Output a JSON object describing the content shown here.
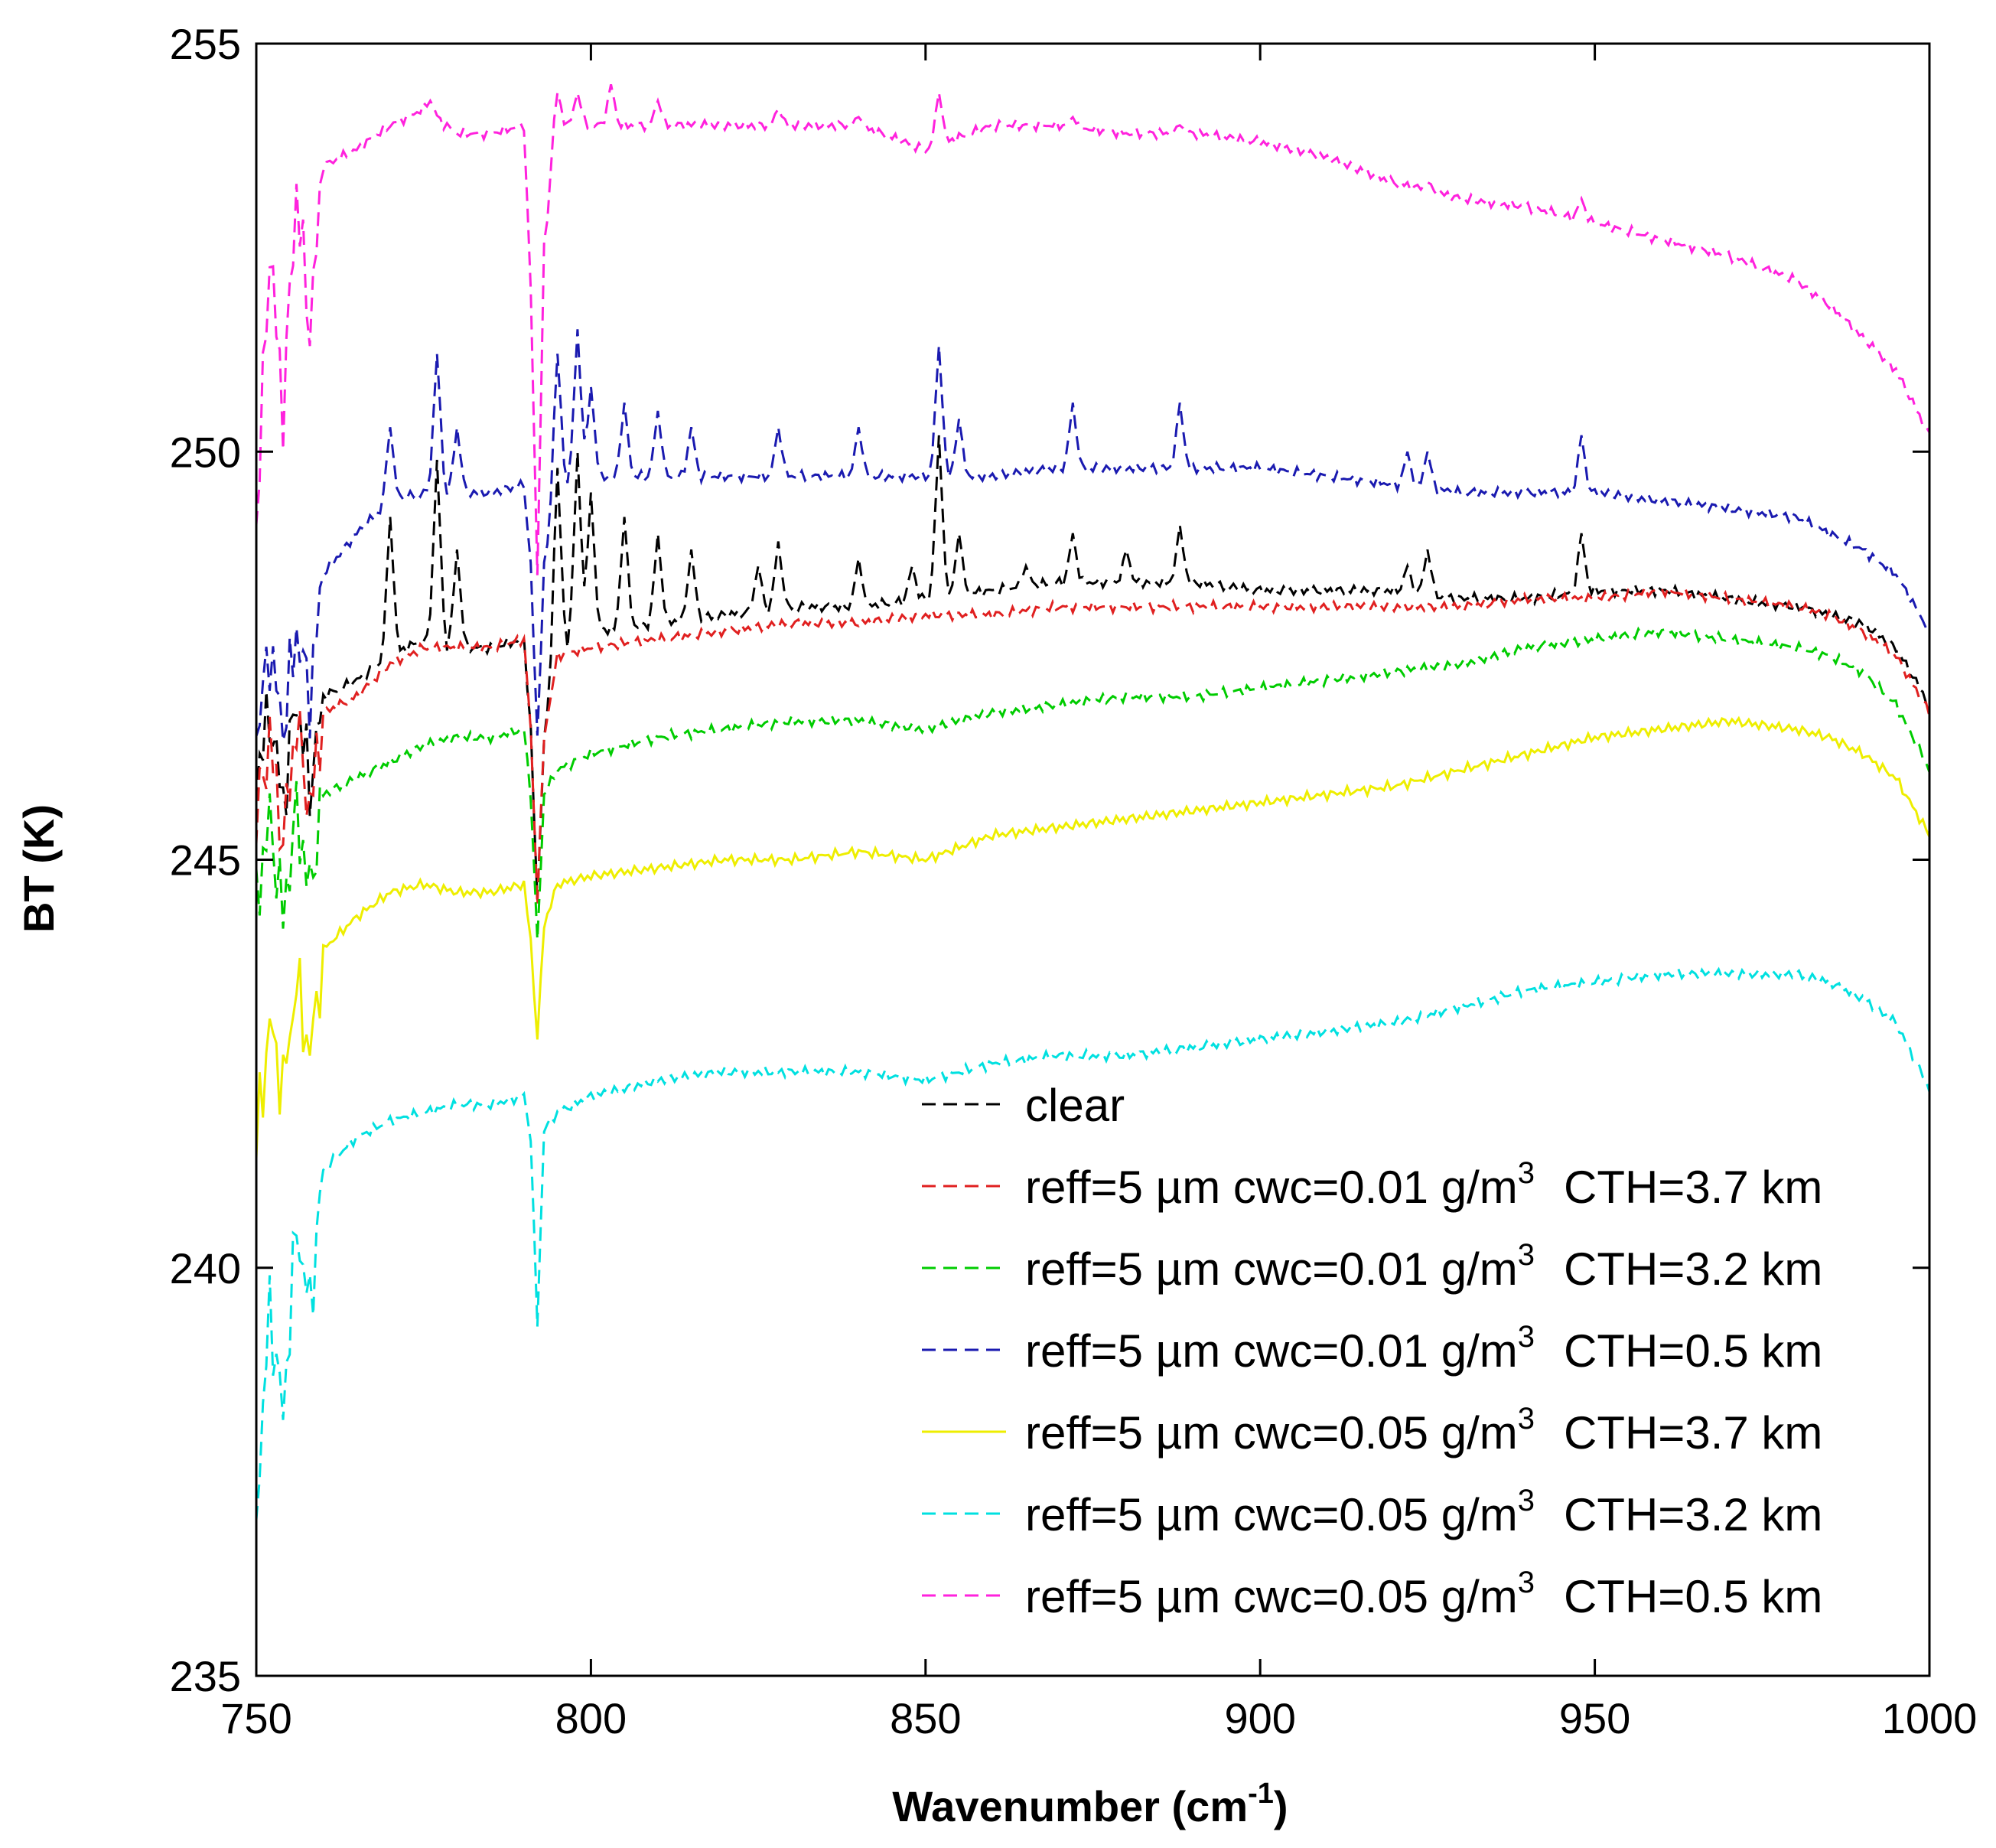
{
  "chart_data": {
    "type": "line",
    "title": "",
    "xlabel": "Wavenumber (cm",
    "xlabel_sup": "-1",
    "xlabel_close": ")",
    "ylabel": "BT (K)",
    "xlim": [
      750,
      1000
    ],
    "ylim": [
      235,
      255
    ],
    "x_ticks": [
      750,
      800,
      850,
      900,
      950,
      1000
    ],
    "y_ticks": [
      235,
      240,
      245,
      250,
      255
    ],
    "grid": false,
    "legend_position": "bottom-right",
    "series": [
      {
        "name": "clear",
        "legend": {
          "main": "clear",
          "sup": "",
          "tail": ""
        },
        "color": "#000000",
        "dash": "18,10",
        "x": [
          750,
          752,
          754,
          756,
          758,
          760,
          765,
          770,
          775,
          780,
          785,
          790,
          791,
          792,
          793,
          795,
          800,
          810,
          820,
          830,
          840,
          850,
          860,
          870,
          880,
          890,
          900,
          910,
          920,
          930,
          940,
          950,
          960,
          970,
          980,
          985,
          990,
          995,
          1000
        ],
        "y": [
          246.0,
          246.8,
          245.7,
          247.0,
          245.9,
          247.0,
          247.2,
          247.5,
          247.7,
          247.6,
          247.6,
          247.7,
          246.6,
          244.5,
          246.5,
          247.6,
          247.8,
          247.9,
          248.0,
          248.1,
          248.1,
          248.2,
          248.3,
          248.4,
          248.4,
          248.4,
          248.3,
          248.3,
          248.3,
          248.2,
          248.2,
          248.3,
          248.3,
          248.2,
          248.1,
          248.0,
          247.9,
          247.6,
          246.9
        ],
        "spikes": [
          [
            770,
            249.2
          ],
          [
            777,
            249.9
          ],
          [
            780,
            248.8
          ],
          [
            795,
            249.8
          ],
          [
            798,
            250.0
          ],
          [
            800,
            249.5
          ],
          [
            805,
            249.2
          ],
          [
            810,
            249.0
          ],
          [
            815,
            248.8
          ],
          [
            825,
            248.6
          ],
          [
            828,
            248.9
          ],
          [
            840,
            248.7
          ],
          [
            848,
            248.6
          ],
          [
            852,
            250.2
          ],
          [
            855,
            249.0
          ],
          [
            865,
            248.6
          ],
          [
            872,
            249.0
          ],
          [
            880,
            248.8
          ],
          [
            888,
            249.1
          ],
          [
            922,
            248.6
          ],
          [
            925,
            248.8
          ],
          [
            948,
            249.0
          ]
        ]
      },
      {
        "name": "reff=5 µm cwc=0.01 g/m3 CTH=3.7 km",
        "legend": {
          "main": "reff=5 µm cwc=0.01 g/m",
          "sup": "3",
          "tail": "CTH=3.7 km"
        },
        "color": "#e02020",
        "dash": "18,10",
        "x": [
          750,
          752,
          754,
          756,
          758,
          760,
          765,
          770,
          775,
          780,
          785,
          790,
          791,
          792,
          793,
          795,
          800,
          810,
          820,
          830,
          840,
          850,
          860,
          870,
          880,
          890,
          900,
          910,
          920,
          930,
          940,
          950,
          960,
          970,
          980,
          985,
          990,
          995,
          1000
        ],
        "y": [
          245.5,
          246.5,
          245.2,
          246.7,
          245.6,
          246.8,
          247.0,
          247.4,
          247.6,
          247.6,
          247.6,
          247.7,
          246.6,
          244.5,
          246.5,
          247.5,
          247.6,
          247.7,
          247.8,
          247.9,
          247.9,
          248.0,
          248.0,
          248.1,
          248.1,
          248.1,
          248.1,
          248.1,
          248.1,
          248.1,
          248.2,
          248.2,
          248.3,
          248.2,
          248.1,
          248.0,
          247.8,
          247.5,
          246.8
        ],
        "spikes": []
      },
      {
        "name": "reff=5 µm cwc=0.01 g/m3 CTH=3.2 km",
        "legend": {
          "main": "reff=5 µm cwc=0.01 g/m",
          "sup": "3",
          "tail": "CTH=3.2 km"
        },
        "color": "#00cc00",
        "dash": "18,10",
        "x": [
          750,
          752,
          754,
          756,
          758,
          760,
          765,
          770,
          775,
          780,
          785,
          790,
          791,
          792,
          793,
          795,
          800,
          810,
          820,
          830,
          840,
          850,
          860,
          870,
          880,
          890,
          900,
          910,
          920,
          930,
          940,
          950,
          960,
          970,
          980,
          985,
          990,
          995,
          1000
        ],
        "y": [
          244.5,
          245.5,
          244.3,
          245.6,
          244.6,
          245.8,
          246.0,
          246.2,
          246.4,
          246.5,
          246.5,
          246.6,
          245.8,
          244.0,
          245.8,
          246.1,
          246.3,
          246.5,
          246.6,
          246.7,
          246.7,
          246.6,
          246.8,
          246.9,
          247.0,
          247.0,
          247.1,
          247.2,
          247.3,
          247.4,
          247.6,
          247.7,
          247.8,
          247.7,
          247.6,
          247.5,
          247.3,
          246.9,
          246.1
        ],
        "spikes": []
      },
      {
        "name": "reff=5 µm cwc=0.01 g/m3 CTH=0.5 km",
        "legend": {
          "main": "reff=5 µm cwc=0.01 g/m",
          "sup": "3",
          "tail": "CTH=0.5 km"
        },
        "color": "#1a1ab0",
        "dash": "18,10",
        "x": [
          750,
          752,
          754,
          756,
          758,
          760,
          765,
          770,
          775,
          780,
          785,
          790,
          791,
          792,
          793,
          795,
          800,
          810,
          820,
          830,
          840,
          850,
          860,
          870,
          880,
          890,
          900,
          910,
          920,
          930,
          940,
          950,
          960,
          970,
          980,
          985,
          990,
          995,
          1000
        ],
        "y": [
          246.5,
          247.6,
          246.6,
          247.8,
          247.0,
          248.5,
          249.0,
          249.4,
          249.5,
          249.5,
          249.5,
          249.6,
          248.6,
          246.5,
          248.6,
          249.6,
          249.7,
          249.7,
          249.7,
          249.7,
          249.7,
          249.7,
          249.7,
          249.8,
          249.8,
          249.8,
          249.8,
          249.7,
          249.6,
          249.5,
          249.5,
          249.5,
          249.4,
          249.3,
          249.2,
          249.0,
          248.8,
          248.5,
          247.8
        ],
        "spikes": [
          [
            770,
            250.3
          ],
          [
            777,
            251.2
          ],
          [
            780,
            250.3
          ],
          [
            795,
            251.2
          ],
          [
            798,
            251.5
          ],
          [
            800,
            250.8
          ],
          [
            805,
            250.6
          ],
          [
            810,
            250.5
          ],
          [
            815,
            250.3
          ],
          [
            828,
            250.3
          ],
          [
            840,
            250.3
          ],
          [
            852,
            251.3
          ],
          [
            855,
            250.4
          ],
          [
            872,
            250.6
          ],
          [
            888,
            250.6
          ],
          [
            922,
            250.0
          ],
          [
            925,
            250.0
          ],
          [
            948,
            250.2
          ]
        ]
      },
      {
        "name": "reff=5 µm cwc=0.05 g/m3 CTH=3.7 km",
        "legend": {
          "main": "reff=5 µm cwc=0.05 g/m",
          "sup": "3",
          "tail": "CTH=3.7 km"
        },
        "color": "#eeee00",
        "dash": "0",
        "x": [
          750,
          752,
          754,
          756,
          758,
          760,
          765,
          770,
          775,
          780,
          785,
          790,
          791,
          792,
          793,
          795,
          800,
          810,
          820,
          830,
          840,
          850,
          860,
          870,
          880,
          890,
          900,
          910,
          920,
          930,
          940,
          950,
          960,
          970,
          980,
          985,
          990,
          995,
          1000
        ],
        "y": [
          241.5,
          243.0,
          242.2,
          243.5,
          242.6,
          243.9,
          244.3,
          244.6,
          244.7,
          244.6,
          244.6,
          244.7,
          244.0,
          242.8,
          244.2,
          244.7,
          244.8,
          244.9,
          245.0,
          245.0,
          245.1,
          245.0,
          245.3,
          245.4,
          245.5,
          245.6,
          245.7,
          245.8,
          245.9,
          246.1,
          246.3,
          246.5,
          246.6,
          246.7,
          246.6,
          246.5,
          246.3,
          246.0,
          245.3
        ],
        "spikes": []
      },
      {
        "name": "reff=5 µm cwc=0.05 g/m3 CTH=3.2 km",
        "legend": {
          "main": "reff=5 µm cwc=0.05 g/m",
          "sup": "3",
          "tail": "CTH=3.2 km"
        },
        "color": "#00e0e0",
        "dash": "18,10",
        "x": [
          750,
          752,
          754,
          756,
          758,
          760,
          765,
          770,
          775,
          780,
          785,
          790,
          791,
          792,
          793,
          795,
          800,
          810,
          820,
          830,
          840,
          850,
          860,
          870,
          880,
          890,
          900,
          910,
          920,
          930,
          940,
          950,
          960,
          970,
          980,
          985,
          990,
          995,
          1000
        ],
        "y": [
          237.0,
          239.5,
          238.2,
          240.5,
          239.5,
          241.2,
          241.6,
          241.8,
          241.9,
          242.0,
          242.0,
          242.1,
          241.6,
          239.3,
          241.7,
          241.9,
          242.1,
          242.3,
          242.4,
          242.4,
          242.4,
          242.3,
          242.5,
          242.6,
          242.6,
          242.7,
          242.8,
          242.9,
          243.0,
          243.2,
          243.4,
          243.5,
          243.6,
          243.6,
          243.6,
          243.5,
          243.3,
          243.0,
          242.2
        ],
        "spikes": []
      },
      {
        "name": "reff=5 µm cwc=0.05 g/m3 CTH=0.5 km",
        "legend": {
          "main": "reff=5 µm cwc=0.05 g/m",
          "sup": "3",
          "tail": "CTH=0.5 km"
        },
        "color": "#ff22dd",
        "dash": "18,10",
        "x": [
          750,
          752,
          754,
          756,
          758,
          760,
          765,
          770,
          775,
          780,
          785,
          790,
          791,
          792,
          793,
          795,
          800,
          810,
          820,
          830,
          840,
          850,
          860,
          870,
          880,
          890,
          900,
          910,
          920,
          930,
          940,
          950,
          960,
          970,
          980,
          985,
          990,
          995,
          1000
        ],
        "y": [
          249.0,
          252.5,
          250.5,
          253.2,
          251.5,
          253.5,
          253.7,
          254.0,
          254.2,
          253.9,
          253.9,
          254.0,
          252.0,
          248.5,
          252.5,
          254.0,
          254.0,
          254.0,
          254.0,
          254.0,
          254.0,
          253.7,
          254.0,
          254.0,
          253.9,
          253.9,
          253.8,
          253.6,
          253.3,
          253.1,
          253.0,
          252.8,
          252.6,
          252.4,
          252.1,
          251.8,
          251.4,
          251.0,
          250.2
        ],
        "spikes": [
          [
            776,
            254.3
          ],
          [
            795,
            254.4
          ],
          [
            798,
            254.4
          ],
          [
            803,
            254.5
          ],
          [
            810,
            254.3
          ],
          [
            828,
            254.2
          ],
          [
            840,
            254.1
          ],
          [
            852,
            254.4
          ],
          [
            872,
            254.1
          ],
          [
            888,
            254.0
          ],
          [
            925,
            253.3
          ],
          [
            948,
            253.1
          ]
        ]
      }
    ]
  }
}
